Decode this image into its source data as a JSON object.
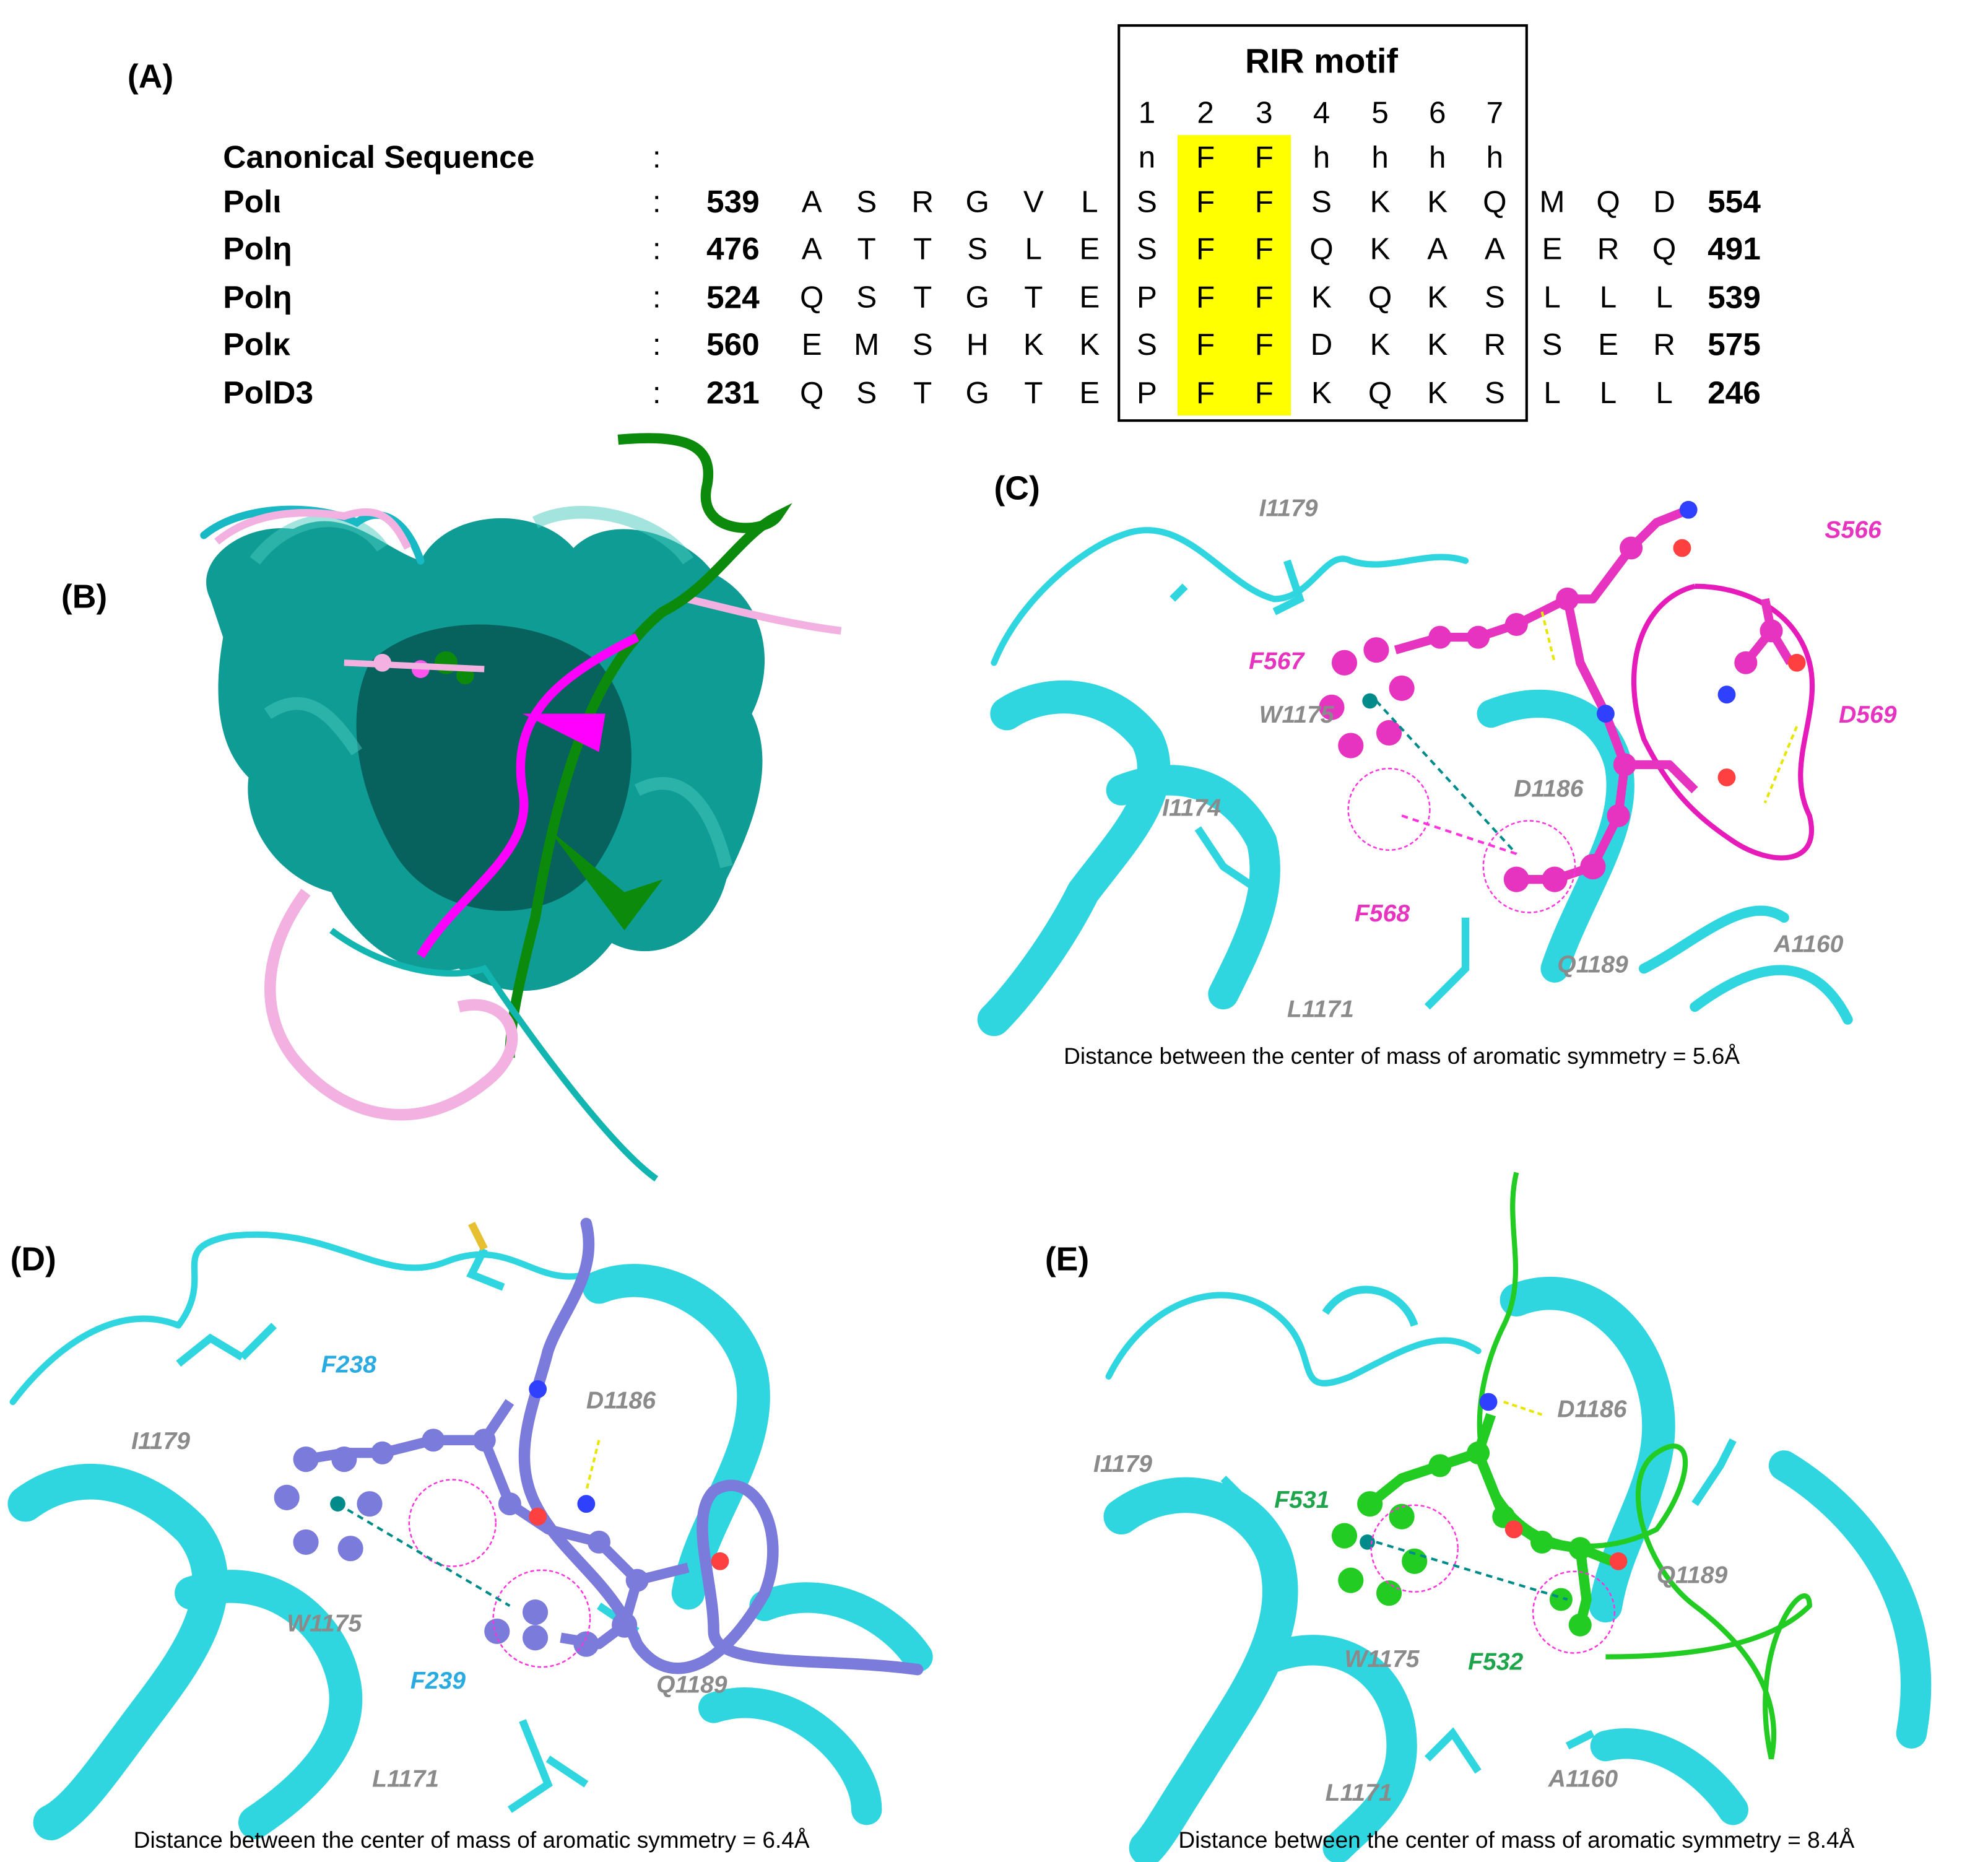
{
  "panels": {
    "a": {
      "label": "(A)",
      "motif_title": "RIR motif",
      "positions": [
        "1",
        "2",
        "3",
        "4",
        "5",
        "6",
        "7"
      ],
      "rows": [
        {
          "name": "Canonical Sequence",
          "separator": ":",
          "motif": [
            "n",
            "F",
            "F",
            "h",
            "h",
            "h",
            "h"
          ]
        },
        {
          "name": "Polι",
          "separator": ":",
          "start": "539",
          "pre": [
            "A",
            "S",
            "R",
            "G",
            "V",
            "L"
          ],
          "motif": [
            "S",
            "F",
            "F",
            "S",
            "K",
            "K",
            "Q"
          ],
          "post": [
            "M",
            "Q",
            "D"
          ],
          "end": "554"
        },
        {
          "name": "Polη",
          "separator": ":",
          "start": "476",
          "pre": [
            "A",
            "T",
            "T",
            "S",
            "L",
            "E"
          ],
          "motif": [
            "S",
            "F",
            "F",
            "Q",
            "K",
            "A",
            "A"
          ],
          "post": [
            "E",
            "R",
            "Q"
          ],
          "end": "491"
        },
        {
          "name": "Polη",
          "separator": ":",
          "start": "524",
          "pre": [
            "Q",
            "S",
            "T",
            "G",
            "T",
            "E"
          ],
          "motif": [
            "P",
            "F",
            "F",
            "K",
            "Q",
            "K",
            "S"
          ],
          "post": [
            "L",
            "L",
            "L"
          ],
          "end": "539"
        },
        {
          "name": "Polκ",
          "separator": ":",
          "start": "560",
          "pre": [
            "E",
            "M",
            "S",
            "H",
            "K",
            "K"
          ],
          "motif": [
            "S",
            "F",
            "F",
            "D",
            "K",
            "K",
            "R"
          ],
          "post": [
            "S",
            "E",
            "R"
          ],
          "end": "575"
        },
        {
          "name": "PolD3",
          "separator": ":",
          "start": "231",
          "pre": [
            "Q",
            "S",
            "T",
            "G",
            "T",
            "E"
          ],
          "motif": [
            "P",
            "F",
            "F",
            "K",
            "Q",
            "K",
            "S"
          ],
          "post": [
            "L",
            "L",
            "L"
          ],
          "end": "246"
        }
      ]
    },
    "b": {
      "label": "(B)"
    },
    "c": {
      "label": "(C)",
      "residues": [
        "I1179",
        "S566",
        "F567",
        "W1175",
        "D569",
        "I1174",
        "D1186",
        "F568",
        "Q1189",
        "A1160",
        "L1171"
      ],
      "caption": "Distance between the center of mass of aromatic symmetry = 5.6Å"
    },
    "d": {
      "label": "(D)",
      "residues": [
        "F238",
        "D1186",
        "I1179",
        "W1175",
        "F239",
        "Q1189",
        "L1171"
      ],
      "caption": "Distance between the center of mass of aromatic symmetry = 6.4Å"
    },
    "e": {
      "label": "(E)",
      "residues": [
        "D1186",
        "I1179",
        "F531",
        "Q1189",
        "W1175",
        "F532",
        "L1171",
        "A1160"
      ],
      "caption": "Distance between the center of mass of aromatic symmetry = 8.4Å"
    }
  }
}
